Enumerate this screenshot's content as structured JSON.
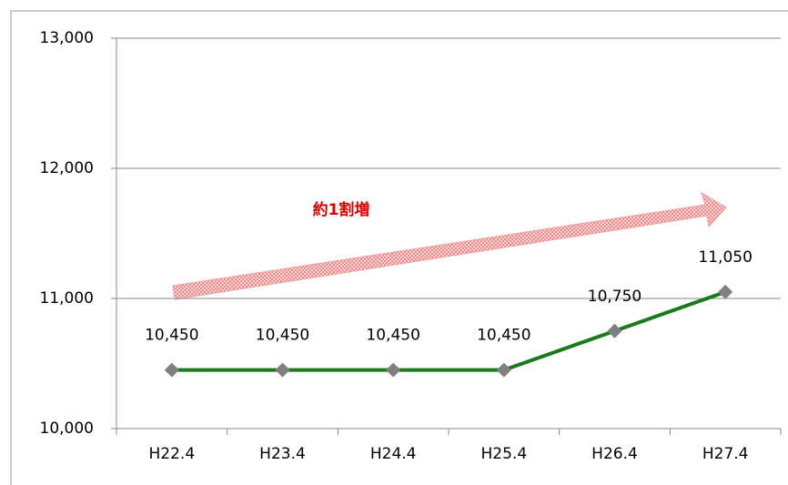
{
  "chart_data": {
    "type": "line",
    "categories": [
      "H22.4",
      "H23.4",
      "H24.4",
      "H25.4",
      "H26.4",
      "H27.4"
    ],
    "values": [
      10450,
      10450,
      10450,
      10450,
      10750,
      11050
    ],
    "value_labels": [
      "10,450",
      "10,450",
      "10,450",
      "10,450",
      "10,750",
      "11,050"
    ],
    "color": "#1a7a1a",
    "marker_color": "#808080",
    "ylim": [
      10000,
      13000
    ],
    "yticks": [
      {
        "value": 10000,
        "label": "10,000"
      },
      {
        "value": 11000,
        "label": "11,000"
      },
      {
        "value": 12000,
        "label": "12,000"
      },
      {
        "value": 13000,
        "label": "13,000"
      }
    ],
    "grid": true,
    "annotation": "約1割増"
  }
}
